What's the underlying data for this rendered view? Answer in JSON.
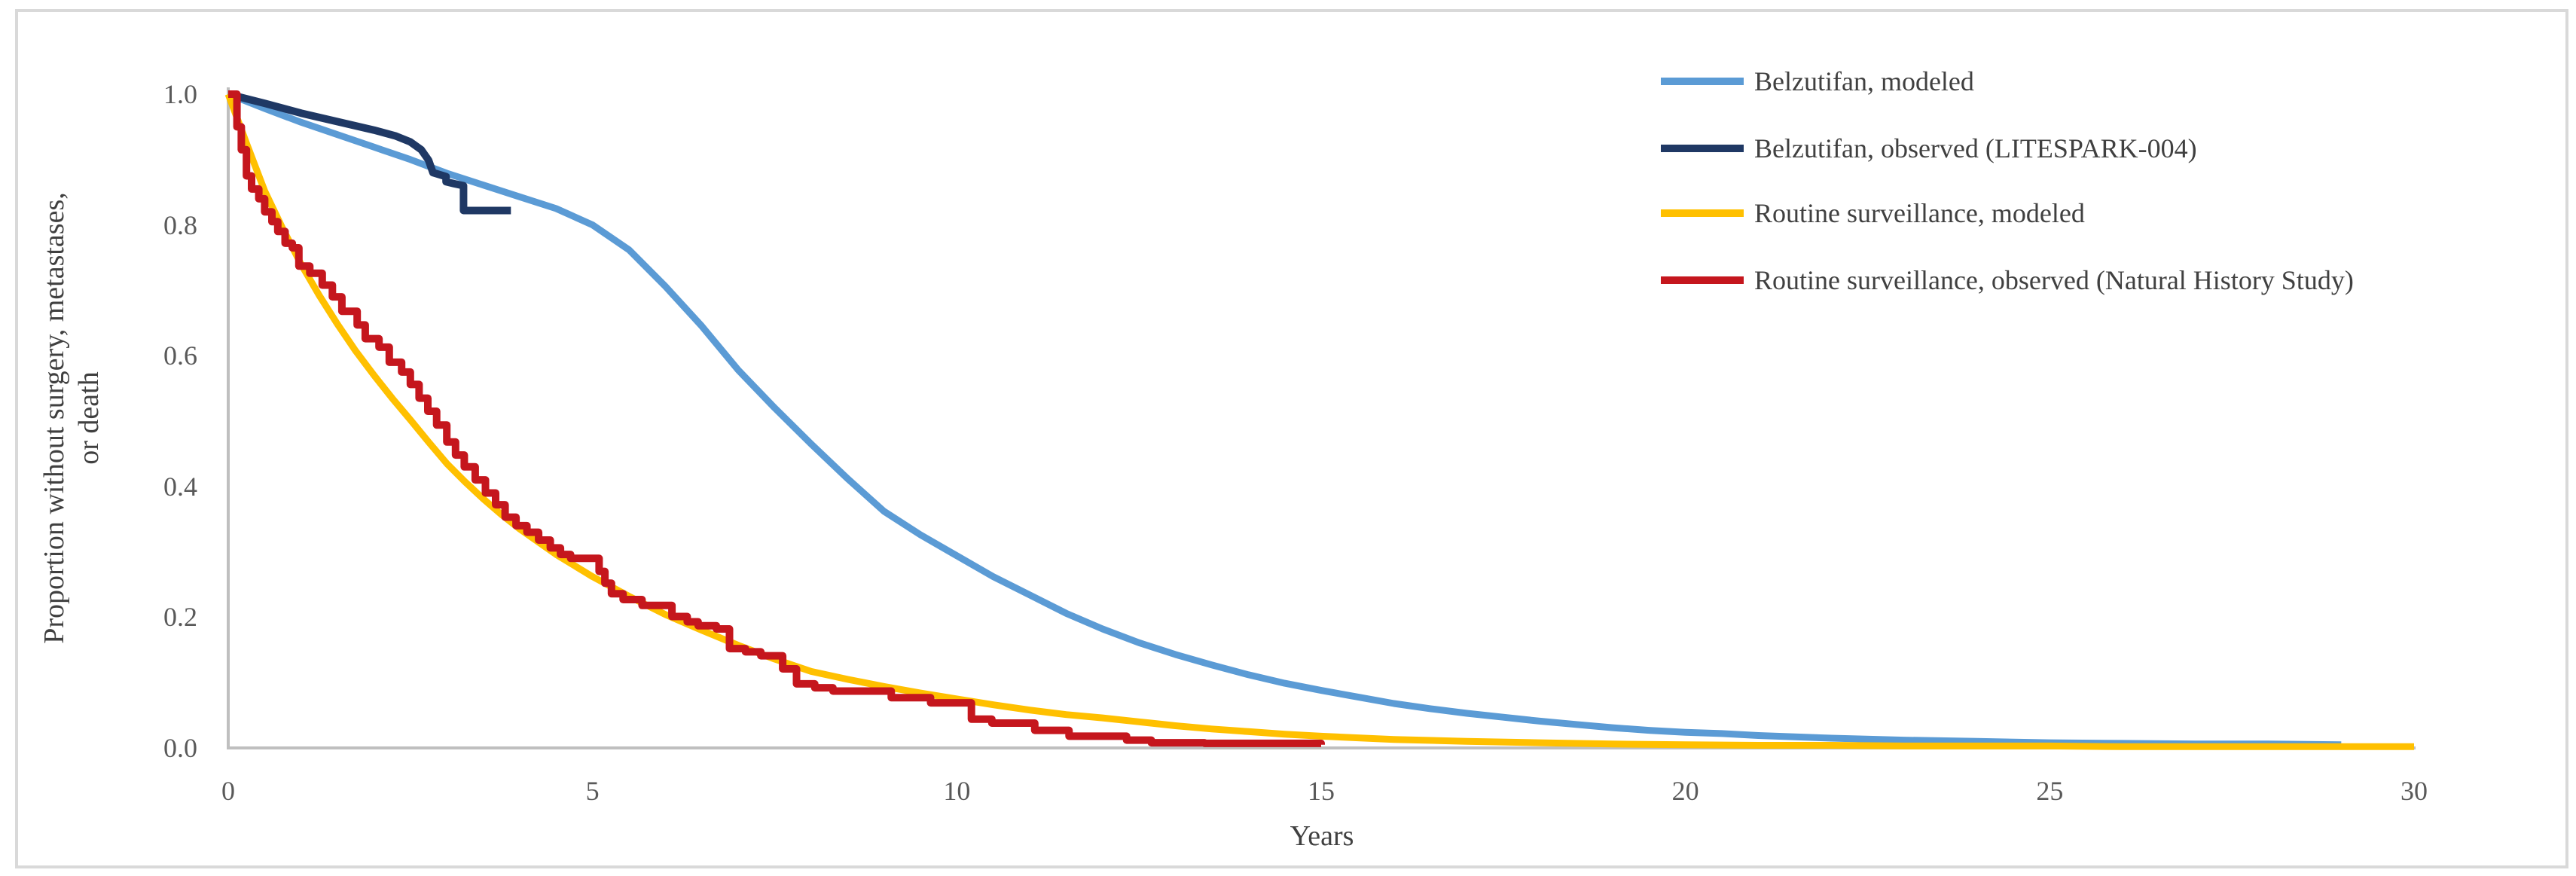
{
  "figure": {
    "background": "#FFFFFF",
    "border_color": "#D9D9D9"
  },
  "axes": {
    "x_title": "Years",
    "y_title_line1": "Proportion without surgery, metastases,",
    "y_title_line2": "or death",
    "x_ticks": [
      "0",
      "5",
      "10",
      "15",
      "20",
      "25",
      "30"
    ],
    "y_ticks": [
      "0.0",
      "0.2",
      "0.4",
      "0.6",
      "0.8",
      "1.0"
    ],
    "axis_color": "#BFBFBF",
    "tick_color": "#595959",
    "title_color": "#404040"
  },
  "chart_data": {
    "type": "line",
    "title": "",
    "xlabel": "Years",
    "ylabel": "Proportion without surgery, metastases, or death",
    "xlim": [
      0,
      30
    ],
    "ylim": [
      0.0,
      1.0
    ],
    "grid": false,
    "legend_position": "top-right",
    "x_tick_values": [
      0,
      5,
      10,
      15,
      20,
      25,
      30
    ],
    "y_tick_values": [
      0.0,
      0.2,
      0.4,
      0.6,
      0.8,
      1.0
    ],
    "series": [
      {
        "name": "Belzutifan, modeled",
        "color": "#5B9BD5",
        "style": "line",
        "points": [
          [
            0,
            1.0
          ],
          [
            0.5,
            0.978
          ],
          [
            1,
            0.957
          ],
          [
            1.5,
            0.938
          ],
          [
            2,
            0.919
          ],
          [
            2.5,
            0.9
          ],
          [
            3,
            0.879
          ],
          [
            3.5,
            0.861
          ],
          [
            4,
            0.843
          ],
          [
            4.5,
            0.825
          ],
          [
            5,
            0.8
          ],
          [
            5.5,
            0.762
          ],
          [
            6,
            0.706
          ],
          [
            6.5,
            0.645
          ],
          [
            7,
            0.578
          ],
          [
            7.5,
            0.52
          ],
          [
            8,
            0.465
          ],
          [
            8.5,
            0.412
          ],
          [
            9,
            0.362
          ],
          [
            9.5,
            0.326
          ],
          [
            10,
            0.294
          ],
          [
            10.5,
            0.262
          ],
          [
            11,
            0.234
          ],
          [
            11.5,
            0.206
          ],
          [
            12,
            0.182
          ],
          [
            12.5,
            0.161
          ],
          [
            13,
            0.143
          ],
          [
            13.5,
            0.127
          ],
          [
            14,
            0.112
          ],
          [
            14.5,
            0.099
          ],
          [
            15,
            0.088
          ],
          [
            15.5,
            0.078
          ],
          [
            16,
            0.068
          ],
          [
            16.5,
            0.06
          ],
          [
            17,
            0.053
          ],
          [
            17.5,
            0.047
          ],
          [
            18,
            0.041
          ],
          [
            18.5,
            0.036
          ],
          [
            19,
            0.031
          ],
          [
            19.5,
            0.027
          ],
          [
            20,
            0.024
          ],
          [
            20.5,
            0.022
          ],
          [
            21,
            0.019
          ],
          [
            22,
            0.015
          ],
          [
            23,
            0.012
          ],
          [
            24,
            0.01
          ],
          [
            25,
            0.008
          ],
          [
            26,
            0.007
          ],
          [
            27,
            0.006
          ],
          [
            28,
            0.006
          ],
          [
            29,
            0.005
          ]
        ]
      },
      {
        "name": "Belzutifan, observed (LITESPARK-004)",
        "color": "#1F3864",
        "style": "line",
        "points": [
          [
            0,
            1.0
          ],
          [
            0.5,
            0.986
          ],
          [
            1,
            0.971
          ],
          [
            1.5,
            0.958
          ],
          [
            2,
            0.945
          ],
          [
            2.3,
            0.936
          ],
          [
            2.5,
            0.927
          ],
          [
            2.65,
            0.915
          ],
          [
            2.75,
            0.899
          ],
          [
            2.81,
            0.88
          ],
          [
            2.99,
            0.874
          ],
          [
            2.99,
            0.866
          ],
          [
            3.1,
            0.863
          ],
          [
            3.23,
            0.86
          ],
          [
            3.23,
            0.822
          ],
          [
            3.88,
            0.822
          ]
        ]
      },
      {
        "name": "Routine surveillance, modeled",
        "color": "#FFC000",
        "style": "line",
        "points": [
          [
            0,
            1.0
          ],
          [
            0.25,
            0.925
          ],
          [
            0.5,
            0.852
          ],
          [
            0.75,
            0.794
          ],
          [
            1,
            0.74
          ],
          [
            1.25,
            0.692
          ],
          [
            1.5,
            0.648
          ],
          [
            1.75,
            0.607
          ],
          [
            2,
            0.57
          ],
          [
            2.25,
            0.535
          ],
          [
            2.5,
            0.502
          ],
          [
            2.75,
            0.468
          ],
          [
            3,
            0.435
          ],
          [
            3.25,
            0.407
          ],
          [
            3.5,
            0.381
          ],
          [
            3.75,
            0.357
          ],
          [
            4,
            0.335
          ],
          [
            4.5,
            0.296
          ],
          [
            5,
            0.262
          ],
          [
            5.5,
            0.232
          ],
          [
            6,
            0.204
          ],
          [
            6.5,
            0.18
          ],
          [
            7,
            0.157
          ],
          [
            7.5,
            0.136
          ],
          [
            8,
            0.117
          ],
          [
            8.5,
            0.105
          ],
          [
            9,
            0.094
          ],
          [
            9.5,
            0.084
          ],
          [
            10,
            0.075
          ],
          [
            10.5,
            0.066
          ],
          [
            11,
            0.058
          ],
          [
            11.5,
            0.051
          ],
          [
            12,
            0.046
          ],
          [
            12.5,
            0.04
          ],
          [
            13,
            0.034
          ],
          [
            13.5,
            0.029
          ],
          [
            14,
            0.025
          ],
          [
            14.5,
            0.021
          ],
          [
            15,
            0.018
          ],
          [
            16,
            0.013
          ],
          [
            17,
            0.01
          ],
          [
            18,
            0.008
          ],
          [
            19,
            0.006
          ],
          [
            20,
            0.005
          ],
          [
            21,
            0.004
          ],
          [
            22,
            0.004
          ],
          [
            23,
            0.003
          ],
          [
            24,
            0.003
          ],
          [
            25,
            0.003
          ],
          [
            26,
            0.002
          ],
          [
            27,
            0.002
          ],
          [
            28,
            0.002
          ],
          [
            29,
            0.002
          ],
          [
            30,
            0.002
          ]
        ]
      },
      {
        "name": "Routine surveillance, observed (Natural History Study)",
        "color": "#C5161D",
        "style": "step",
        "points": [
          [
            0,
            1.0
          ],
          [
            0.12,
            0.95
          ],
          [
            0.18,
            0.915
          ],
          [
            0.25,
            0.875
          ],
          [
            0.32,
            0.855
          ],
          [
            0.42,
            0.84
          ],
          [
            0.5,
            0.82
          ],
          [
            0.6,
            0.805
          ],
          [
            0.68,
            0.79
          ],
          [
            0.78,
            0.772
          ],
          [
            0.88,
            0.765
          ],
          [
            0.97,
            0.737
          ],
          [
            1.12,
            0.726
          ],
          [
            1.29,
            0.708
          ],
          [
            1.43,
            0.69
          ],
          [
            1.56,
            0.668
          ],
          [
            1.77,
            0.647
          ],
          [
            1.88,
            0.626
          ],
          [
            2.07,
            0.613
          ],
          [
            2.21,
            0.59
          ],
          [
            2.38,
            0.575
          ],
          [
            2.5,
            0.556
          ],
          [
            2.62,
            0.535
          ],
          [
            2.74,
            0.515
          ],
          [
            2.86,
            0.494
          ],
          [
            3.0,
            0.468
          ],
          [
            3.12,
            0.448
          ],
          [
            3.24,
            0.43
          ],
          [
            3.39,
            0.41
          ],
          [
            3.53,
            0.39
          ],
          [
            3.67,
            0.372
          ],
          [
            3.8,
            0.353
          ],
          [
            3.95,
            0.34
          ],
          [
            4.1,
            0.33
          ],
          [
            4.26,
            0.318
          ],
          [
            4.42,
            0.306
          ],
          [
            4.56,
            0.296
          ],
          [
            4.7,
            0.29
          ],
          [
            5.09,
            0.27
          ],
          [
            5.17,
            0.252
          ],
          [
            5.26,
            0.236
          ],
          [
            5.42,
            0.227
          ],
          [
            5.68,
            0.218
          ],
          [
            6.09,
            0.201
          ],
          [
            6.3,
            0.193
          ],
          [
            6.45,
            0.187
          ],
          [
            6.7,
            0.182
          ],
          [
            6.88,
            0.152
          ],
          [
            7.1,
            0.147
          ],
          [
            7.31,
            0.141
          ],
          [
            7.61,
            0.121
          ],
          [
            7.8,
            0.098
          ],
          [
            8.05,
            0.092
          ],
          [
            8.3,
            0.087
          ],
          [
            9.1,
            0.077
          ],
          [
            9.64,
            0.069
          ],
          [
            10.2,
            0.044
          ],
          [
            10.48,
            0.038
          ],
          [
            11.07,
            0.027
          ],
          [
            11.54,
            0.018
          ],
          [
            12.33,
            0.012
          ],
          [
            12.67,
            0.008
          ],
          [
            13.4,
            0.007
          ],
          [
            15.0,
            0.005
          ]
        ]
      }
    ]
  }
}
